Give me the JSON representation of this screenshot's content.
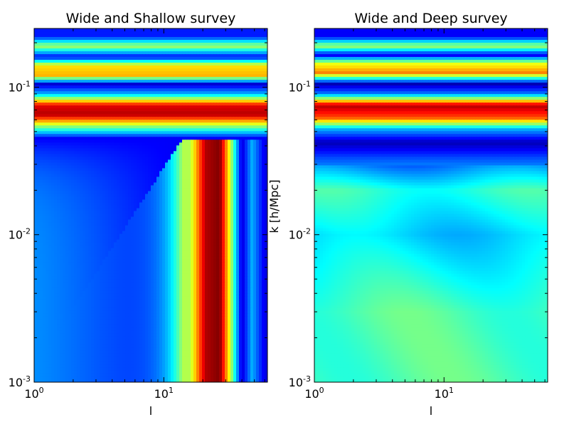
{
  "chart_data": [
    {
      "type": "heatmap",
      "title": "Wide and Shallow survey",
      "xlabel": "l",
      "ylabel": "",
      "x_scale": "log",
      "y_scale": "log",
      "xlim": [
        1,
        63
      ],
      "ylim": [
        0.001,
        0.25
      ],
      "x_ticks": [
        {
          "value": 1,
          "base": "10",
          "exp": "0"
        },
        {
          "value": 10,
          "base": "10",
          "exp": "1"
        }
      ],
      "y_ticks": [
        {
          "value": 0.001,
          "base": "10",
          "exp": "-3"
        },
        {
          "value": 0.01,
          "base": "10",
          "exp": "-2"
        },
        {
          "value": 0.1,
          "base": "10",
          "exp": "-1"
        }
      ],
      "colormap": "jet",
      "pattern": "curved_bands",
      "description_bands_k": [
        {
          "k": 0.22,
          "level": 0.15
        },
        {
          "k": 0.19,
          "level": 0.55
        },
        {
          "k": 0.16,
          "level": 0.12
        },
        {
          "k": 0.14,
          "level": 0.65
        },
        {
          "k": 0.12,
          "level": 0.7
        },
        {
          "k": 0.105,
          "level": 0.08
        },
        {
          "k": 0.09,
          "level": 0.3
        },
        {
          "k": 0.075,
          "level": 0.9
        },
        {
          "k": 0.065,
          "level": 0.95
        },
        {
          "k": 0.055,
          "level": 0.55
        },
        {
          "k": 0.045,
          "level": 0.12
        }
      ],
      "description_bands_l": [
        {
          "l": 16,
          "level": 0.55
        },
        {
          "l": 21,
          "level": 0.95
        },
        {
          "l": 27,
          "level": 1.0
        },
        {
          "l": 33,
          "level": 0.55
        },
        {
          "l": 40,
          "level": 0.08
        },
        {
          "l": 48,
          "level": 0.3
        },
        {
          "l": 60,
          "level": 0.1
        }
      ]
    },
    {
      "type": "heatmap",
      "title": "Wide and Deep survey",
      "xlabel": "l",
      "ylabel": "k [h/Mpc]",
      "x_scale": "log",
      "y_scale": "log",
      "xlim": [
        1,
        63
      ],
      "ylim": [
        0.001,
        0.25
      ],
      "x_ticks": [
        {
          "value": 1,
          "base": "10",
          "exp": "0"
        },
        {
          "value": 10,
          "base": "10",
          "exp": "1"
        }
      ],
      "y_ticks": [
        {
          "value": 0.001,
          "base": "10",
          "exp": "-3"
        },
        {
          "value": 0.01,
          "base": "10",
          "exp": "-2"
        },
        {
          "value": 0.1,
          "base": "10",
          "exp": "-1"
        }
      ],
      "colormap": "jet",
      "pattern": "horizontal_bands",
      "description_bands_k": [
        {
          "k": 0.22,
          "level": 0.12
        },
        {
          "k": 0.19,
          "level": 0.55
        },
        {
          "k": 0.165,
          "level": 0.1
        },
        {
          "k": 0.145,
          "level": 0.6
        },
        {
          "k": 0.125,
          "level": 0.75
        },
        {
          "k": 0.105,
          "level": 0.05
        },
        {
          "k": 0.09,
          "level": 0.25
        },
        {
          "k": 0.075,
          "level": 0.95
        },
        {
          "k": 0.062,
          "level": 0.8
        },
        {
          "k": 0.052,
          "level": 0.3
        },
        {
          "k": 0.042,
          "level": 0.05
        },
        {
          "k": 0.033,
          "level": 0.2
        },
        {
          "k": 0.02,
          "level": 0.42
        },
        {
          "k": 0.01,
          "level": 0.33
        },
        {
          "k": 0.003,
          "level": 0.45
        }
      ]
    }
  ]
}
